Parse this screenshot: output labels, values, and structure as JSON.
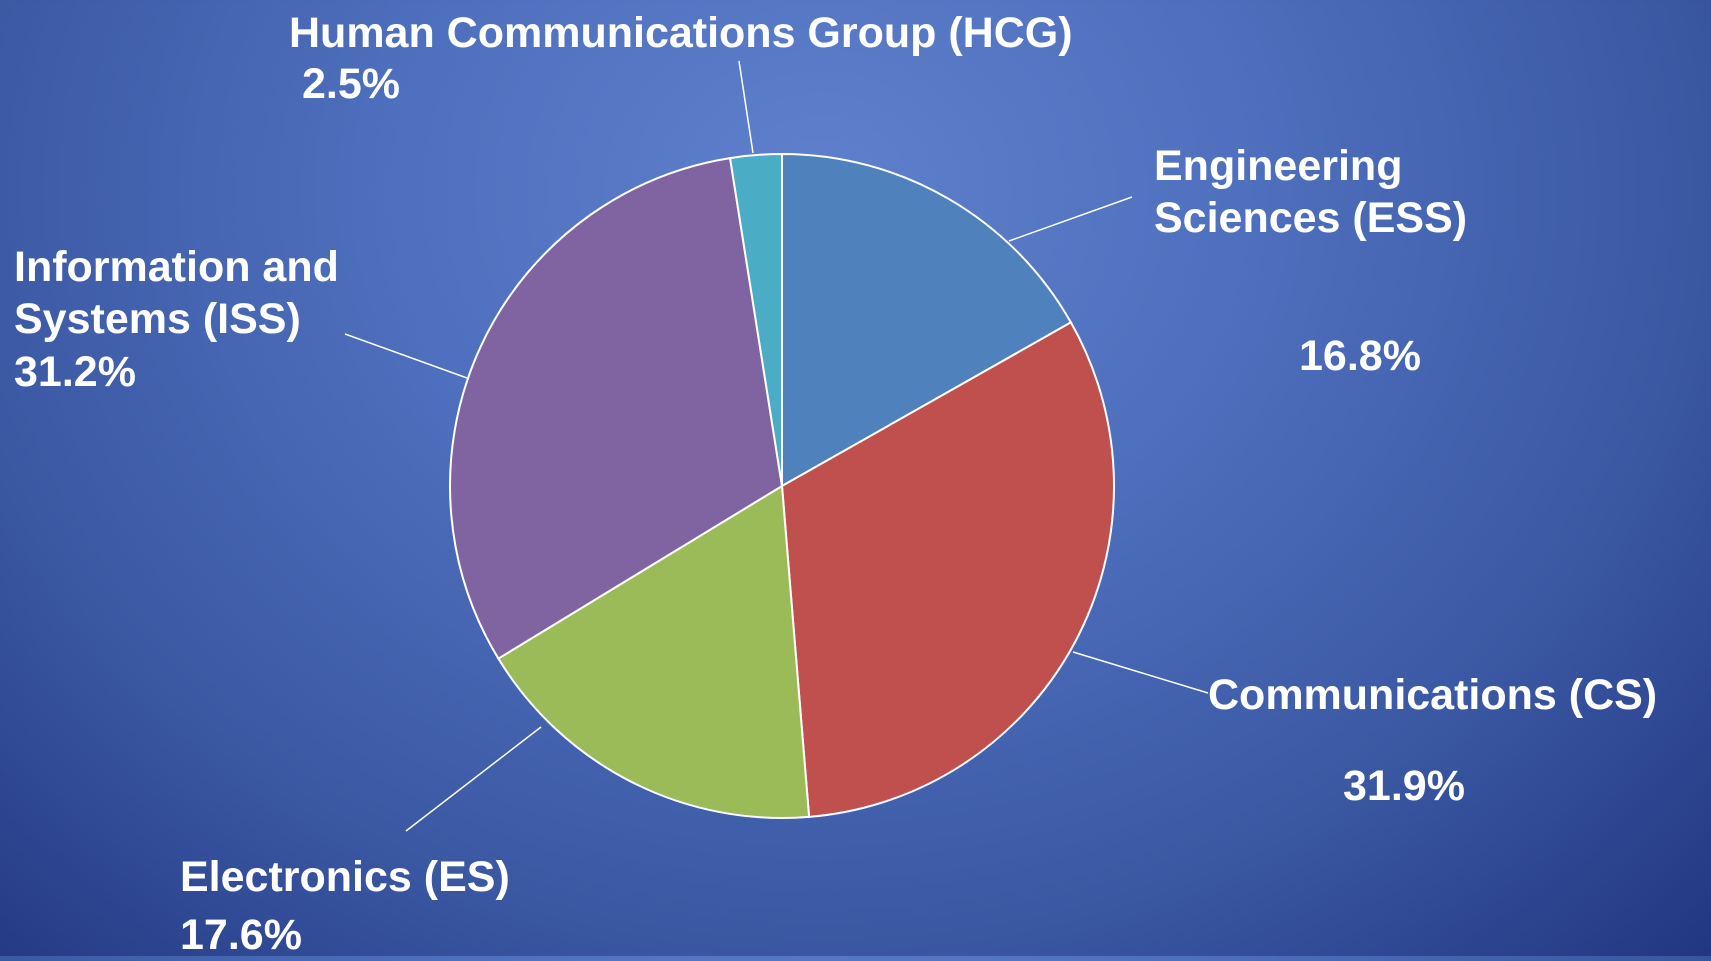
{
  "chart_data": {
    "type": "pie",
    "categories": [
      "Engineering Sciences (ESS)",
      "Communications (CS)",
      "Electronics (ES)",
      "Information and Systems (ISS)",
      "Human Communications Group (HCG)"
    ],
    "values": [
      16.8,
      31.9,
      17.6,
      31.2,
      2.5
    ],
    "value_labels": [
      "16.8%",
      "31.9%",
      "17.6%",
      "31.2%",
      "2.5%"
    ],
    "colors": [
      "#4f81bd",
      "#c0504d",
      "#9bbb59",
      "#8064a2",
      "#4bacc6"
    ]
  }
}
